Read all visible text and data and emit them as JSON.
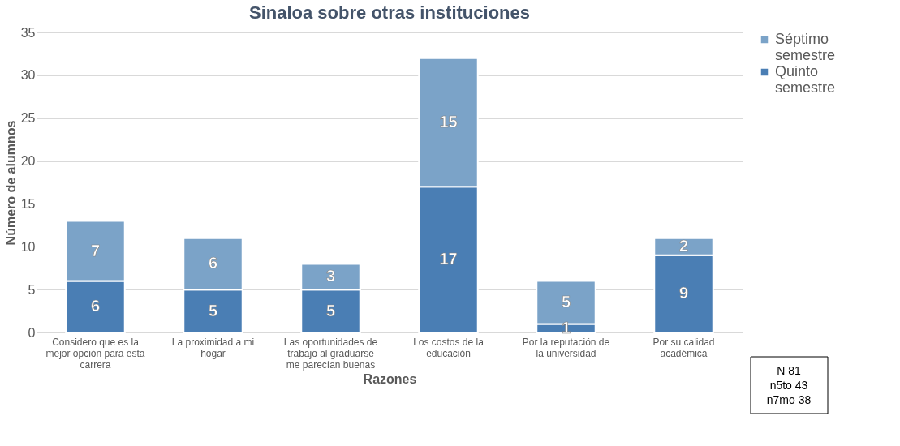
{
  "chart_data": {
    "type": "bar",
    "stacked": true,
    "title": "Sinaloa sobre otras instituciones",
    "xlabel": "Razones",
    "ylabel": "Número de alumnos",
    "categories": [
      "Considero que es la mejor opción para esta carrera",
      "La proximidad a mi hogar",
      "Las oportunidades de trabajo al graduarse me parecían buenas",
      "Los costos de la educación",
      "Por la reputación de la universidad",
      "Por su calidad académica"
    ],
    "series": [
      {
        "name": "Quinto semestre",
        "color": "#4a7eb4",
        "values": [
          6,
          5,
          5,
          17,
          1,
          9
        ]
      },
      {
        "name": "Séptimo semestre",
        "color": "#7ba3c8",
        "values": [
          7,
          6,
          3,
          15,
          5,
          2
        ]
      }
    ],
    "ylim": [
      0,
      35
    ],
    "yticks": [
      0,
      5,
      10,
      15,
      20,
      25,
      30,
      35
    ],
    "grid": "y",
    "legend": "right",
    "data_labels": true,
    "annotations": [
      "N 81\nn5to 43\nn7mo 38"
    ]
  }
}
